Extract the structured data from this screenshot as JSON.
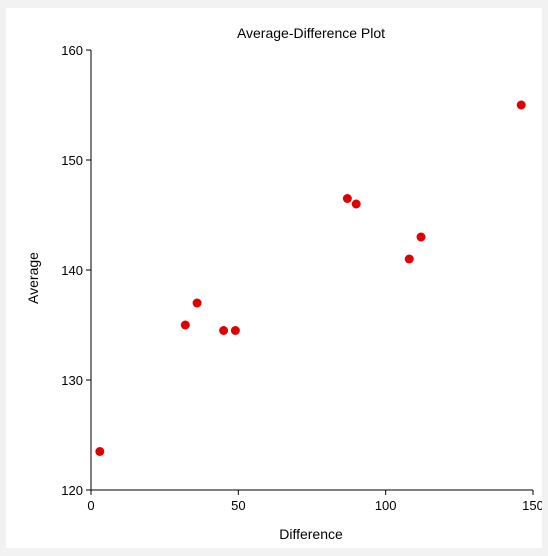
{
  "chart_data": {
    "type": "scatter",
    "title": "Average-Difference Plot",
    "xlabel": "Difference",
    "ylabel": "Average",
    "xlim": [
      0,
      150
    ],
    "ylim": [
      120,
      160
    ],
    "xticks": [
      0,
      50,
      100,
      150
    ],
    "yticks": [
      120,
      130,
      140,
      150,
      160
    ],
    "grid": false,
    "marker_color": "#e00000",
    "points": [
      {
        "x": 3,
        "y": 123.5
      },
      {
        "x": 32,
        "y": 135
      },
      {
        "x": 36,
        "y": 137
      },
      {
        "x": 45,
        "y": 134.5
      },
      {
        "x": 49,
        "y": 134.5
      },
      {
        "x": 87,
        "y": 146.5
      },
      {
        "x": 90,
        "y": 146
      },
      {
        "x": 108,
        "y": 141
      },
      {
        "x": 112,
        "y": 143
      },
      {
        "x": 146,
        "y": 155
      }
    ]
  }
}
